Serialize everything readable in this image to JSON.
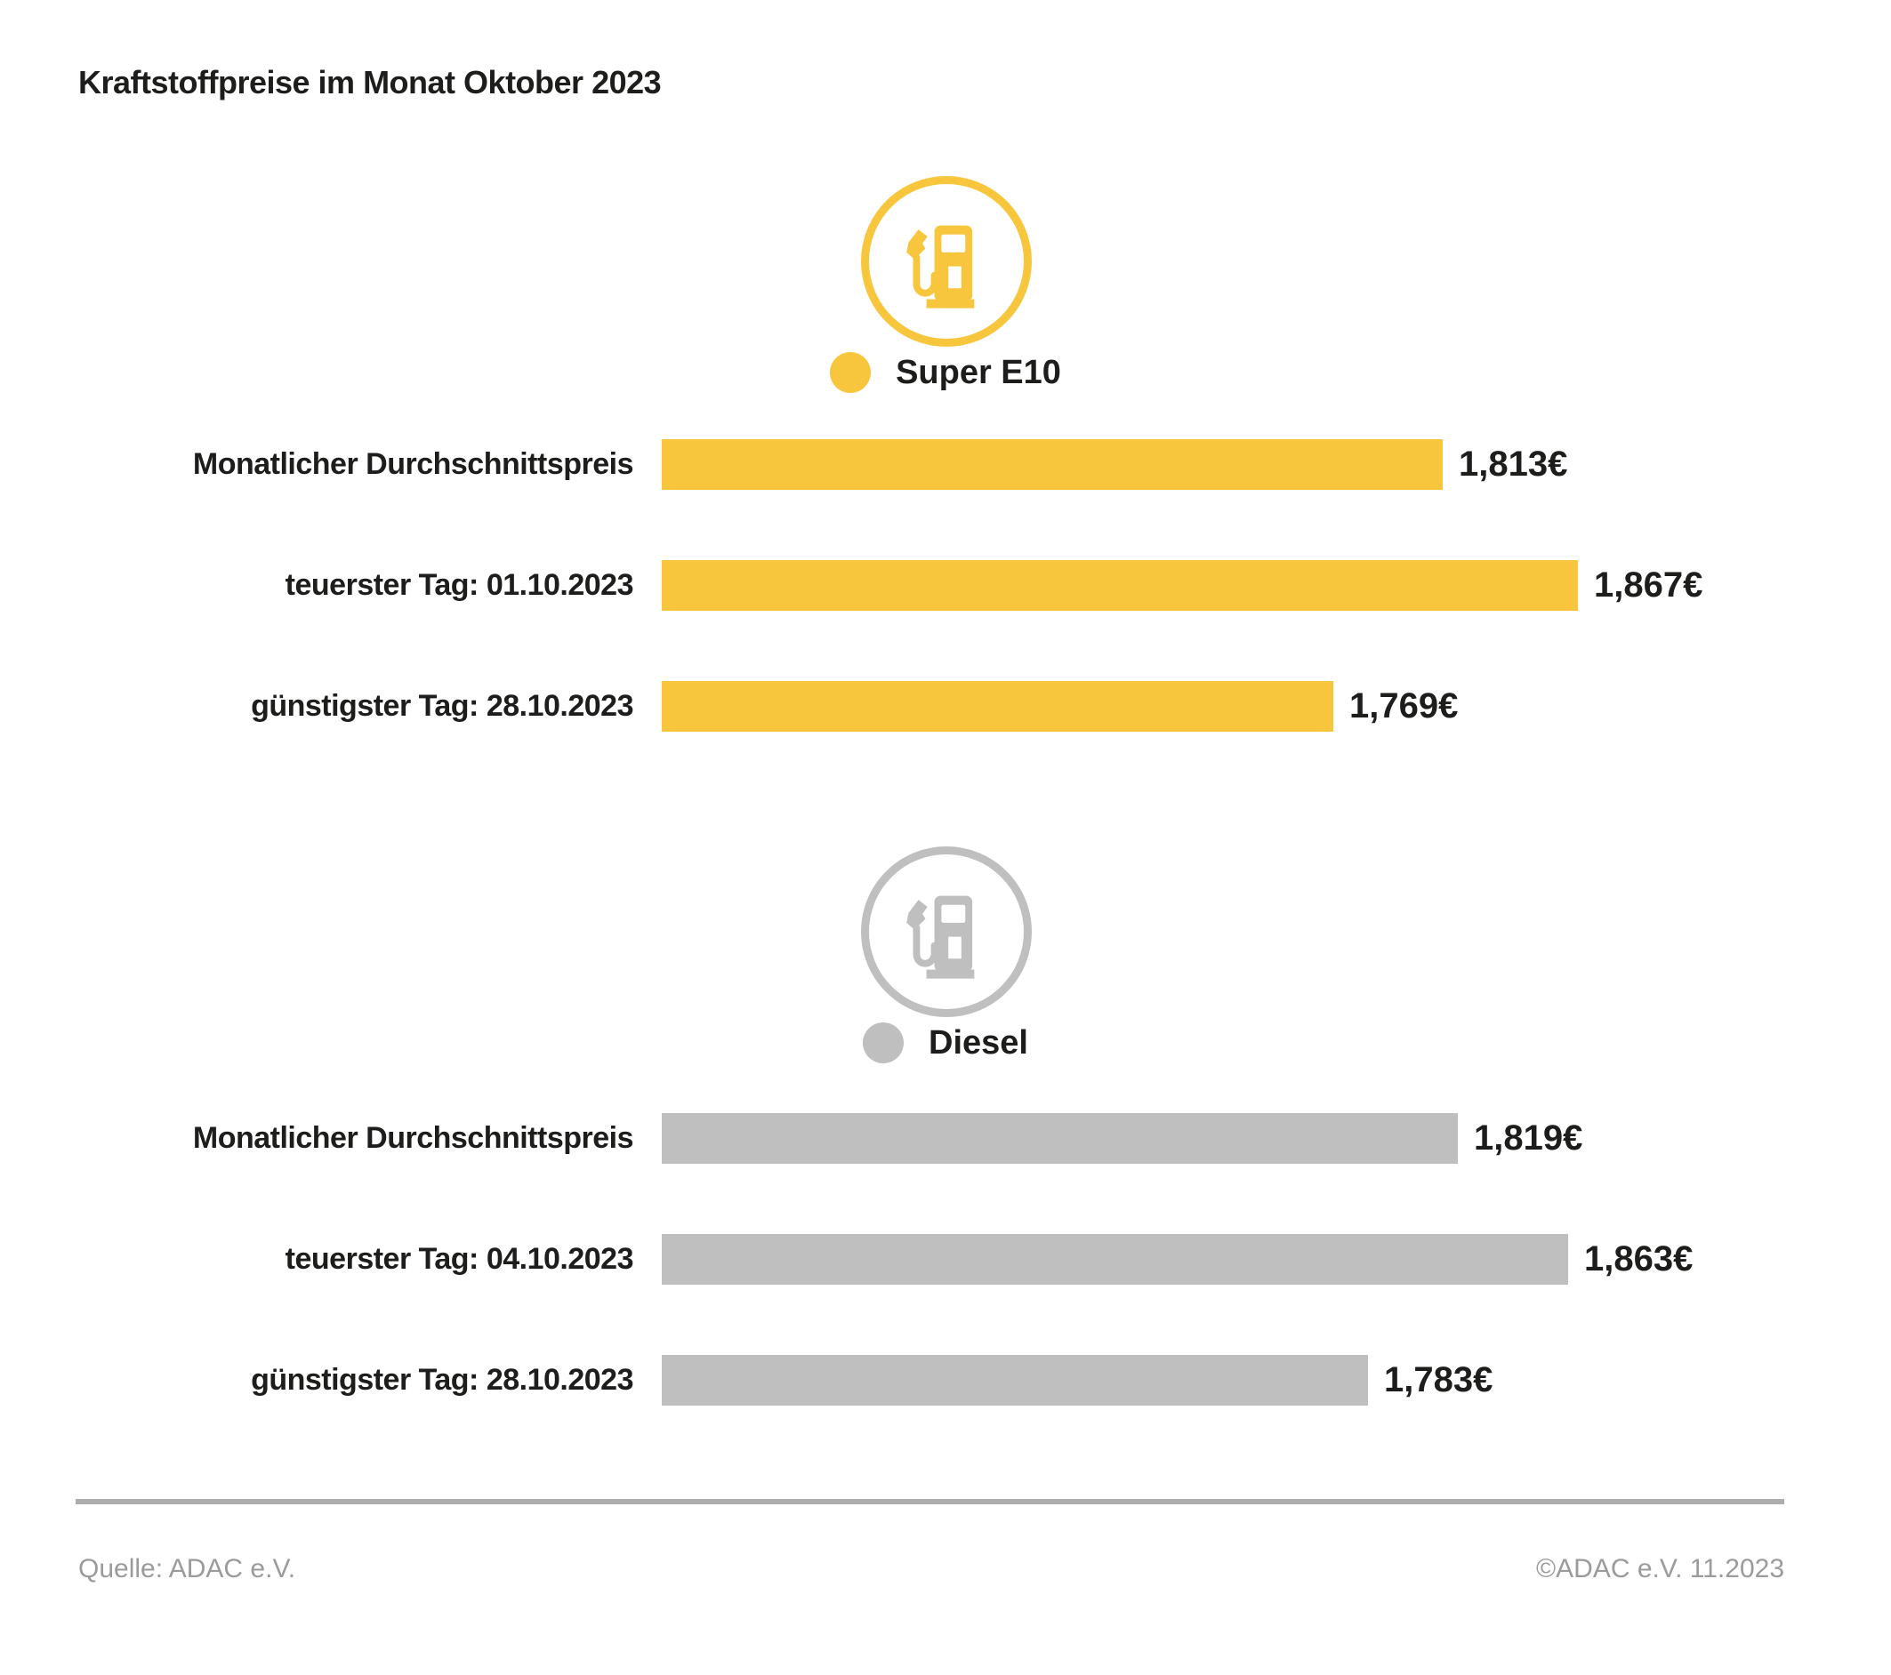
{
  "title": "Kraftstoffpreise im Monat Oktober 2023",
  "colors": {
    "super_e10": "#F8C63C",
    "diesel": "#BFBFBF",
    "text": "#1D1D1B",
    "footer_text": "#9B9B9B",
    "divider": "#ADADAD"
  },
  "chart_data": {
    "type": "bar",
    "orientation": "horizontal",
    "title": "Kraftstoffpreise im Monat Oktober 2023",
    "unit": "EUR/Liter",
    "axis_min": 1.5,
    "grid": false,
    "groups": [
      {
        "name": "Super E10",
        "color": "#F8C63C",
        "icon": "fuel-pump-icon",
        "rows": [
          {
            "label": "Monatlicher Durchschnittspreis",
            "value": 1.813,
            "value_label": "1,813€"
          },
          {
            "label": "teuerster Tag: 01.10.2023",
            "value": 1.867,
            "value_label": "1,867€"
          },
          {
            "label": "günstigster Tag: 28.10.2023",
            "value": 1.769,
            "value_label": "1,769€"
          }
        ]
      },
      {
        "name": "Diesel",
        "color": "#BFBFBF",
        "icon": "fuel-pump-icon",
        "rows": [
          {
            "label": "Monatlicher Durchschnittspreis",
            "value": 1.819,
            "value_label": "1,819€"
          },
          {
            "label": "teuerster Tag: 04.10.2023",
            "value": 1.863,
            "value_label": "1,863€"
          },
          {
            "label": "günstigster Tag: 28.10.2023",
            "value": 1.783,
            "value_label": "1,783€"
          }
        ]
      }
    ]
  },
  "footer": {
    "source": "Quelle: ADAC e.V.",
    "copyright": "©ADAC e.V. 11.2023"
  }
}
